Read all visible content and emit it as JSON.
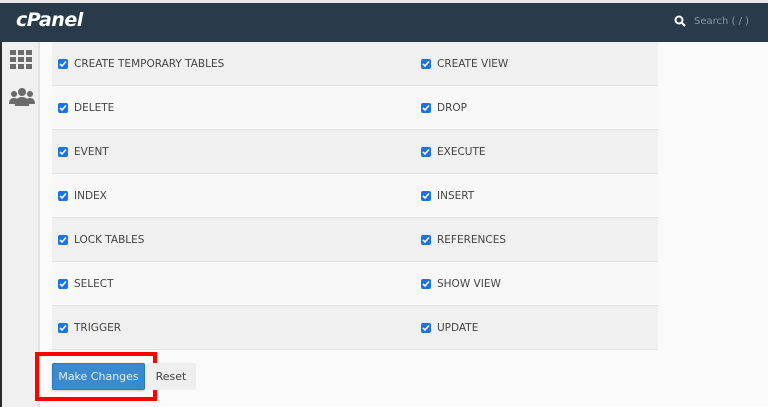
{
  "header": {
    "logo": "cPanel",
    "search_placeholder": "Search ( / )"
  },
  "sidebar": {
    "icons": [
      "grid-icon",
      "users-icon"
    ]
  },
  "privileges": [
    [
      "CREATE TEMPORARY TABLES",
      "CREATE VIEW"
    ],
    [
      "DELETE",
      "DROP"
    ],
    [
      "EVENT",
      "EXECUTE"
    ],
    [
      "INDEX",
      "INSERT"
    ],
    [
      "LOCK TABLES",
      "REFERENCES"
    ],
    [
      "SELECT",
      "SHOW VIEW"
    ],
    [
      "TRIGGER",
      "UPDATE"
    ]
  ],
  "checked": true,
  "actions": {
    "make_changes": "Make Changes",
    "reset": "Reset"
  },
  "colors": {
    "header": "#293a4a",
    "primary": "#3a8ad0",
    "highlight": "#ff0000",
    "checkbox": "#1a73e8"
  }
}
